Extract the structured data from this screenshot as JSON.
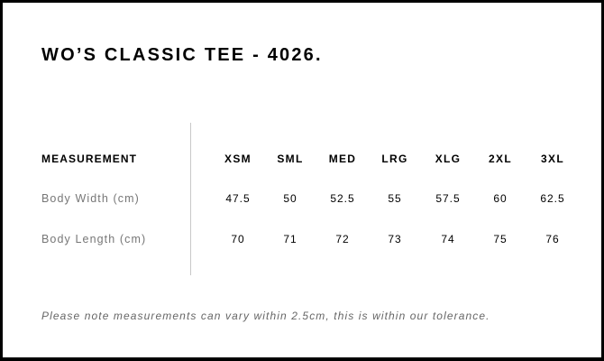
{
  "title": "WO’S CLASSIC TEE - 4026.",
  "table": {
    "header_label": "MEASUREMENT",
    "sizes": [
      "XSM",
      "SML",
      "MED",
      "LRG",
      "XLG",
      "2XL",
      "3XL"
    ],
    "rows": [
      {
        "label": "Body Width (cm)",
        "values": [
          "47.5",
          "50",
          "52.5",
          "55",
          "57.5",
          "60",
          "62.5"
        ]
      },
      {
        "label": "Body Length (cm)",
        "values": [
          "70",
          "71",
          "72",
          "73",
          "74",
          "75",
          "76"
        ]
      }
    ]
  },
  "note": "Please note measurements can vary within 2.5cm, this is within our tolerance."
}
